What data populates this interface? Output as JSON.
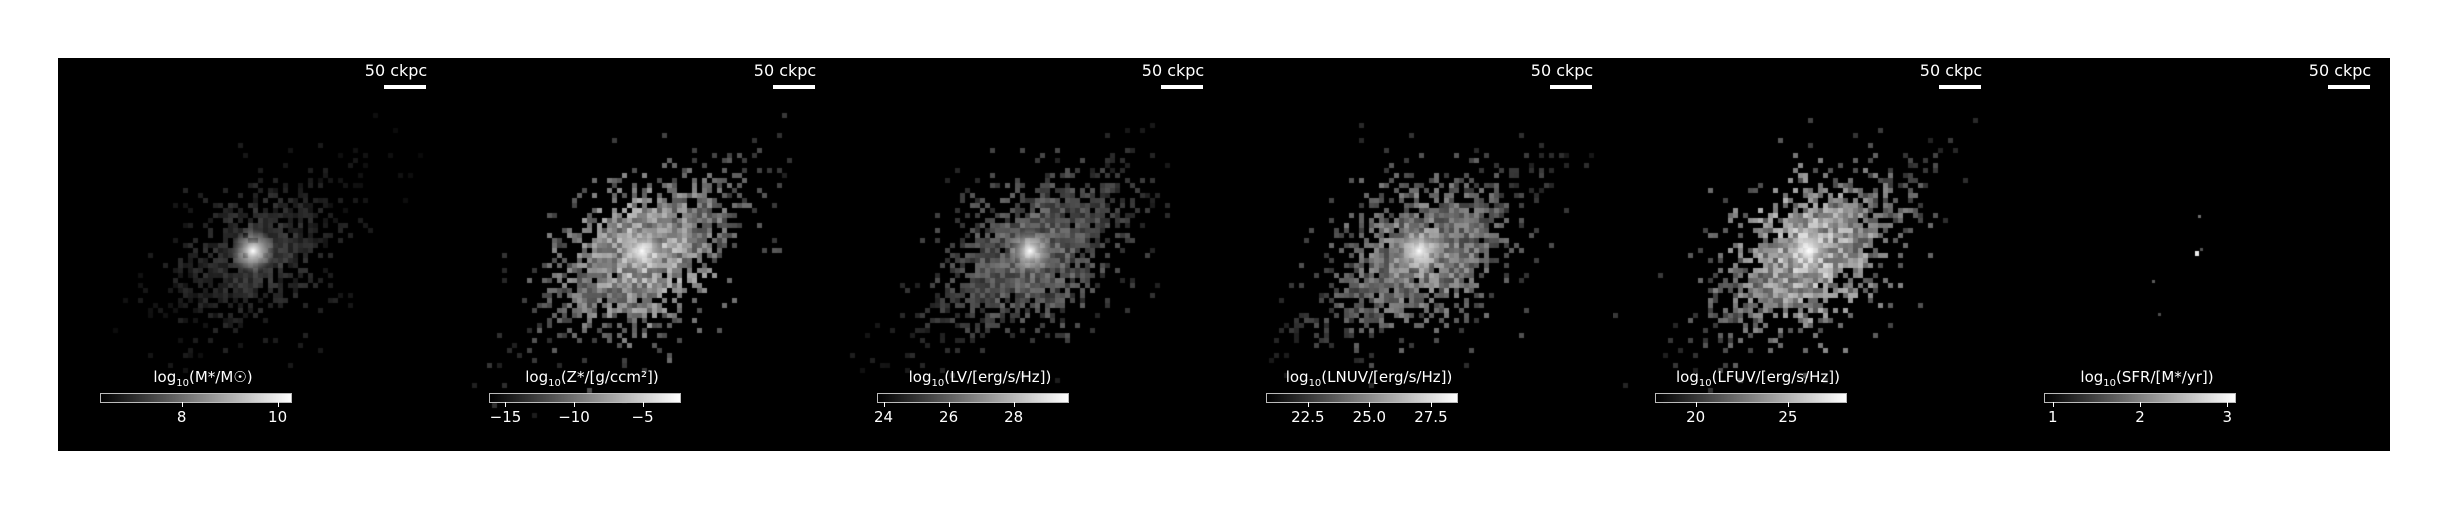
{
  "scale_bar_label": "50 ckpc",
  "colors": {
    "background": "#000000",
    "figure_bg": "#ffffff",
    "foreground": "#ffffff"
  },
  "panels": [
    {
      "id": "stellar-mass",
      "colorbar": {
        "label": "log10(M*/M☉)",
        "label_main": "log",
        "label_sub": "10",
        "label_rest": "(M*/M☉)",
        "min": 6.3,
        "max": 10.3,
        "ticks": [
          {
            "value": 8,
            "label": "8"
          },
          {
            "value": 10,
            "label": "10"
          }
        ]
      },
      "map": {
        "density": 0.35,
        "brightness": 0.45,
        "seed": 11
      }
    },
    {
      "id": "metallicity",
      "colorbar": {
        "label": "log10(Z*/[g/ccm²])",
        "label_main": "log",
        "label_sub": "10",
        "label_rest": "(Z*/[g/ccm²])",
        "min": -16.2,
        "max": -2.2,
        "ticks": [
          {
            "value": -15,
            "label": "−15"
          },
          {
            "value": -10,
            "label": "−10"
          },
          {
            "value": -5,
            "label": "−5"
          }
        ]
      },
      "map": {
        "density": 1.0,
        "brightness": 0.9,
        "seed": 23
      }
    },
    {
      "id": "v-band",
      "colorbar": {
        "label": "log10(LV/[erg/s/Hz])",
        "label_main": "log",
        "label_sub": "10",
        "label_rest": "(LV/[erg/s/Hz])",
        "min": 23.8,
        "max": 29.7,
        "ticks": [
          {
            "value": 24,
            "label": "24"
          },
          {
            "value": 26,
            "label": "26"
          },
          {
            "value": 28,
            "label": "28"
          }
        ]
      },
      "map": {
        "density": 1.0,
        "brightness": 0.55,
        "seed": 37
      }
    },
    {
      "id": "nuv-band",
      "colorbar": {
        "label": "log10(LNUV/[erg/s/Hz])",
        "label_main": "log",
        "label_sub": "10",
        "label_rest": "(LNUV/[erg/s/Hz])",
        "min": 20.8,
        "max": 28.6,
        "ticks": [
          {
            "value": 22.5,
            "label": "22.5"
          },
          {
            "value": 25.0,
            "label": "25.0"
          },
          {
            "value": 27.5,
            "label": "27.5"
          }
        ]
      },
      "map": {
        "density": 1.0,
        "brightness": 0.75,
        "seed": 41
      }
    },
    {
      "id": "fuv-band",
      "colorbar": {
        "label": "log10(LFUV/[erg/s/Hz])",
        "label_main": "log",
        "label_sub": "10",
        "label_rest": "(LFUV/[erg/s/Hz])",
        "min": 17.8,
        "max": 28.2,
        "ticks": [
          {
            "value": 20,
            "label": "20"
          },
          {
            "value": 25,
            "label": "25"
          }
        ]
      },
      "map": {
        "density": 1.0,
        "brightness": 0.95,
        "seed": 53
      }
    },
    {
      "id": "sfr",
      "colorbar": {
        "label": "log10(SFR/[M*/yr])",
        "label_main": "log",
        "label_sub": "10",
        "label_rest": "(SFR/[M*/yr])",
        "min": 0.9,
        "max": 3.1,
        "ticks": [
          {
            "value": 1,
            "label": "1"
          },
          {
            "value": 2,
            "label": "2"
          },
          {
            "value": 3,
            "label": "3"
          }
        ]
      },
      "map": {
        "density": 0.02,
        "brightness": 0.9,
        "seed": 67
      }
    }
  ]
}
